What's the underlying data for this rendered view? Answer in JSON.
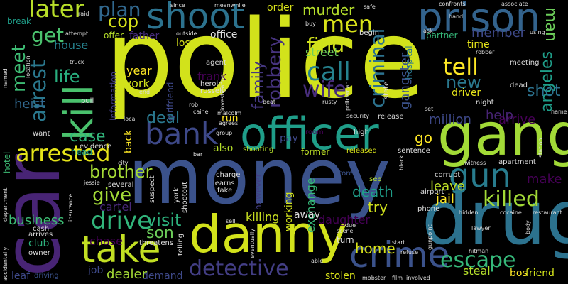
{
  "word_cloud": {
    "words": [
      {
        "text": "police",
        "color": "#d2e21b"
      },
      {
        "text": "money",
        "color": "#3b528b"
      },
      {
        "text": "car",
        "color": "#482475"
      },
      {
        "text": "drug",
        "color": "#2c728e"
      },
      {
        "text": "gang",
        "color": "#a2da37"
      },
      {
        "text": "danny",
        "color": "#d2e21b"
      },
      {
        "text": "officer",
        "color": "#1f9e89"
      },
      {
        "text": "shoot",
        "color": "#2c728e"
      },
      {
        "text": "prison",
        "color": "#33638d"
      },
      {
        "text": "crime",
        "color": "#3b528b"
      },
      {
        "text": "take",
        "color": "#c2df23"
      },
      {
        "text": "kill",
        "color": "#4ac16d"
      },
      {
        "text": "bank",
        "color": "#3e4989"
      },
      {
        "text": "gun",
        "color": "#287c8e"
      },
      {
        "text": "detective",
        "color": "#433e85"
      },
      {
        "text": "drive",
        "color": "#31b57b"
      },
      {
        "text": "killed",
        "color": "#a2da37"
      },
      {
        "text": "escape",
        "color": "#35b779"
      },
      {
        "text": "arrested",
        "color": "#e5e419"
      },
      {
        "text": "call",
        "color": "#26828e"
      },
      {
        "text": "wife",
        "color": "#472d7b"
      },
      {
        "text": "tell",
        "color": "#fde725"
      },
      {
        "text": "men",
        "color": "#d8e219"
      },
      {
        "text": "murder",
        "color": "#b5de2b"
      },
      {
        "text": "arrest",
        "color": "#2a788e"
      },
      {
        "text": "meet",
        "color": "#3dbc74"
      },
      {
        "text": "later",
        "color": "#b8de29"
      },
      {
        "text": "plan",
        "color": "#31688e"
      },
      {
        "text": "get",
        "color": "#4ac16d"
      },
      {
        "text": "cop",
        "color": "#d8e219"
      },
      {
        "text": "find",
        "color": "#d0e11c"
      },
      {
        "text": "robbery",
        "color": "#46337e"
      },
      {
        "text": "criminal",
        "color": "#2c728e"
      },
      {
        "text": "gangster",
        "color": "#3b528b"
      },
      {
        "text": "family",
        "color": "#453781"
      },
      {
        "text": "member",
        "color": "#3e4989"
      },
      {
        "text": "man",
        "color": "#6ccd5a"
      },
      {
        "text": "angeles",
        "color": "#1f9e89"
      },
      {
        "text": "shot",
        "color": "#2c728e"
      },
      {
        "text": "new",
        "color": "#2a788e"
      },
      {
        "text": "life",
        "color": "#29af7f"
      },
      {
        "text": "brother",
        "color": "#a5db36"
      },
      {
        "text": "give",
        "color": "#a2da37"
      },
      {
        "text": "case",
        "color": "#31b57b"
      },
      {
        "text": "deal",
        "color": "#2a788e"
      },
      {
        "text": "visit",
        "color": "#2db27d"
      },
      {
        "text": "son",
        "color": "#6ccd5a"
      },
      {
        "text": "try",
        "color": "#d0e11c"
      },
      {
        "text": "home",
        "color": "#d8e219"
      },
      {
        "text": "death",
        "color": "#1f9e89"
      },
      {
        "text": "jail",
        "color": "#fde725"
      },
      {
        "text": "leave",
        "color": "#bddf26"
      },
      {
        "text": "make",
        "color": "#440154"
      },
      {
        "text": "go",
        "color": "#fde725"
      },
      {
        "text": "arrive",
        "color": "#440154"
      },
      {
        "text": "help",
        "color": "#482475"
      },
      {
        "text": "million",
        "color": "#3e4989"
      },
      {
        "text": "business",
        "color": "#3dbc74"
      },
      {
        "text": "cartel",
        "color": "#482878"
      },
      {
        "text": "chase",
        "color": "#440154"
      },
      {
        "text": "killing",
        "color": "#c8e020"
      },
      {
        "text": "daughter",
        "color": "#440154"
      },
      {
        "text": "working",
        "color": "#d0e11c"
      },
      {
        "text": "year",
        "color": "#fde725"
      },
      {
        "text": "work",
        "color": "#d2e21b"
      },
      {
        "text": "frank",
        "color": "#440154"
      },
      {
        "text": "heist",
        "color": "#31688e"
      },
      {
        "text": "house",
        "color": "#26828e"
      },
      {
        "text": "street",
        "color": "#6ccd5a"
      },
      {
        "text": "exchange",
        "color": "#35b779"
      },
      {
        "text": "steal",
        "color": "#b5de2b"
      },
      {
        "text": "friend",
        "color": "#d2e21b"
      },
      {
        "text": "bos",
        "color": "#fde725"
      },
      {
        "text": "stolen",
        "color": "#d8e219"
      },
      {
        "text": "demand",
        "color": "#3e4989"
      },
      {
        "text": "dealer",
        "color": "#a5db36"
      },
      {
        "text": "job",
        "color": "#3e4989"
      },
      {
        "text": "leaf",
        "color": "#3e4989"
      },
      {
        "text": "driving",
        "color": "#3b528b"
      },
      {
        "text": "club",
        "color": "#2db27d"
      },
      {
        "text": "break",
        "color": "#1f9e89"
      },
      {
        "text": "office",
        "color": "#ddd"
      },
      {
        "text": "los",
        "color": "#d8e219"
      },
      {
        "text": "father",
        "color": "#472d7b"
      },
      {
        "text": "offer",
        "color": "#b5de2b"
      },
      {
        "text": "order",
        "color": "#d8e219"
      },
      {
        "text": "partner",
        "color": "#35b779"
      },
      {
        "text": "driver",
        "color": "#e5e419"
      },
      {
        "text": "time",
        "color": "#e5e419"
      },
      {
        "text": "former",
        "color": "#bddf26"
      },
      {
        "text": "released",
        "color": "#d8e219"
      },
      {
        "text": "pay",
        "color": "#3e4989"
      },
      {
        "text": "also",
        "color": "#b5de2b"
      },
      {
        "text": "run",
        "color": "#fde725"
      },
      {
        "text": "back",
        "color": "#fde725"
      },
      {
        "text": "head",
        "color": "#1f9e89"
      },
      {
        "text": "hotel",
        "color": "#3dbc74"
      },
      {
        "text": "girlfriend",
        "color": "#3e4989"
      },
      {
        "text": "information",
        "color": "#433e85"
      },
      {
        "text": "however",
        "color": "#433e85"
      },
      {
        "text": "store",
        "color": "#3b528b"
      },
      {
        "text": "see",
        "color": "#b5de2b"
      },
      {
        "text": "hospital",
        "color": "#2a788e"
      },
      {
        "text": "room",
        "color": "#440154"
      },
      {
        "text": "high",
        "color": "#ddd"
      },
      {
        "text": "shooting",
        "color": "#b5de2b"
      },
      {
        "text": "russell",
        "color": "#ddd"
      },
      {
        "text": "heroin",
        "color": "#ddd"
      },
      {
        "text": "agent",
        "color": "#ddd"
      },
      {
        "text": "rob",
        "color": "#ddd"
      },
      {
        "text": "location",
        "color": "#ddd"
      },
      {
        "text": "pull",
        "color": "#ddd"
      },
      {
        "text": "evidence",
        "color": "#ddd"
      },
      {
        "text": "want",
        "color": "#ddd"
      },
      {
        "text": "local",
        "color": "#ddd"
      },
      {
        "text": "several",
        "color": "#ddd"
      },
      {
        "text": "suspect",
        "color": "#ddd"
      },
      {
        "text": "york",
        "color": "#ddd"
      },
      {
        "text": "fake",
        "color": "#ddd"
      },
      {
        "text": "charge",
        "color": "#ddd"
      },
      {
        "text": "learns",
        "color": "#ddd"
      },
      {
        "text": "threatens",
        "color": "#ddd"
      },
      {
        "text": "telling",
        "color": "#ddd"
      },
      {
        "text": "shootout",
        "color": "#ddd"
      },
      {
        "text": "sell",
        "color": "#ddd"
      },
      {
        "text": "away",
        "color": "#ddd"
      },
      {
        "text": "mobster",
        "color": "#ddd"
      },
      {
        "text": "film",
        "color": "#ddd"
      },
      {
        "text": "involved",
        "color": "#ddd"
      },
      {
        "text": "hitman",
        "color": "#ddd"
      },
      {
        "text": "refuse",
        "color": "#ddd"
      },
      {
        "text": "body",
        "color": "#ddd"
      },
      {
        "text": "lawyer",
        "color": "#ddd"
      },
      {
        "text": "hidden",
        "color": "#ddd"
      },
      {
        "text": "cocaine",
        "color": "#ddd"
      },
      {
        "text": "restaurant",
        "color": "#ddd"
      },
      {
        "text": "gunpoint",
        "color": "#ddd"
      },
      {
        "text": "airport",
        "color": "#ddd"
      },
      {
        "text": "phone",
        "color": "#ddd"
      },
      {
        "text": "corrupt",
        "color": "#ddd"
      },
      {
        "text": "witness",
        "color": "#ddd"
      },
      {
        "text": "apartment",
        "color": "#ddd"
      },
      {
        "text": "sentence",
        "color": "#ddd"
      },
      {
        "text": "security",
        "color": "#ddd"
      },
      {
        "text": "release",
        "color": "#ddd"
      },
      {
        "text": "night",
        "color": "#ddd"
      },
      {
        "text": "dead",
        "color": "#ddd"
      },
      {
        "text": "meeting",
        "color": "#ddd"
      },
      {
        "text": "state",
        "color": "#ddd"
      },
      {
        "text": "policeman",
        "color": "#ddd"
      },
      {
        "text": "investigation",
        "color": "#ddd"
      },
      {
        "text": "beat",
        "color": "#ddd"
      },
      {
        "text": "rusty",
        "color": "#ddd"
      },
      {
        "text": "confronts",
        "color": "#ddd"
      },
      {
        "text": "associate",
        "color": "#ddd"
      },
      {
        "text": "hand",
        "color": "#ddd"
      },
      {
        "text": "using",
        "color": "#ddd"
      },
      {
        "text": "robber",
        "color": "#ddd"
      },
      {
        "text": "safe",
        "color": "#ddd"
      },
      {
        "text": "meanwhile",
        "color": "#ddd"
      },
      {
        "text": "since",
        "color": "#ddd"
      },
      {
        "text": "raid",
        "color": "#ddd"
      },
      {
        "text": "attempt",
        "color": "#ddd"
      },
      {
        "text": "outside",
        "color": "#ddd"
      },
      {
        "text": "truck",
        "color": "#ddd"
      },
      {
        "text": "named",
        "color": "#ddd"
      },
      {
        "text": "end",
        "color": "#ddd"
      },
      {
        "text": "caine",
        "color": "#ddd"
      },
      {
        "text": "malcolm",
        "color": "#ddd"
      },
      {
        "text": "agrees",
        "color": "#ddd"
      },
      {
        "text": "group",
        "color": "#ddd"
      },
      {
        "text": "bar",
        "color": "#ddd"
      },
      {
        "text": "city",
        "color": "#ddd"
      },
      {
        "text": "jessie",
        "color": "#ddd"
      },
      {
        "text": "insurance",
        "color": "#ddd"
      },
      {
        "text": "department",
        "color": "#ddd"
      },
      {
        "text": "cash",
        "color": "#ddd"
      },
      {
        "text": "arrives",
        "color": "#ddd"
      },
      {
        "text": "owner",
        "color": "#ddd"
      },
      {
        "text": "accidentally",
        "color": "#ddd"
      },
      {
        "text": "eventually",
        "color": "#ddd"
      },
      {
        "text": "able",
        "color": "#ddd"
      },
      {
        "text": "due",
        "color": "#ddd"
      },
      {
        "text": "scene",
        "color": "#ddd"
      },
      {
        "text": "turn",
        "color": "#ddd"
      },
      {
        "text": "begin",
        "color": "#ddd"
      },
      {
        "text": "start",
        "color": "#ddd"
      },
      {
        "text": "set",
        "color": "#ddd"
      },
      {
        "text": "black",
        "color": "#ddd"
      },
      {
        "text": "name",
        "color": "#ddd"
      },
      {
        "text": "station",
        "color": "#ddd"
      },
      {
        "text": "buy",
        "color": "#ddd"
      },
      {
        "text": "ask",
        "color": "#ddd"
      }
    ]
  }
}
